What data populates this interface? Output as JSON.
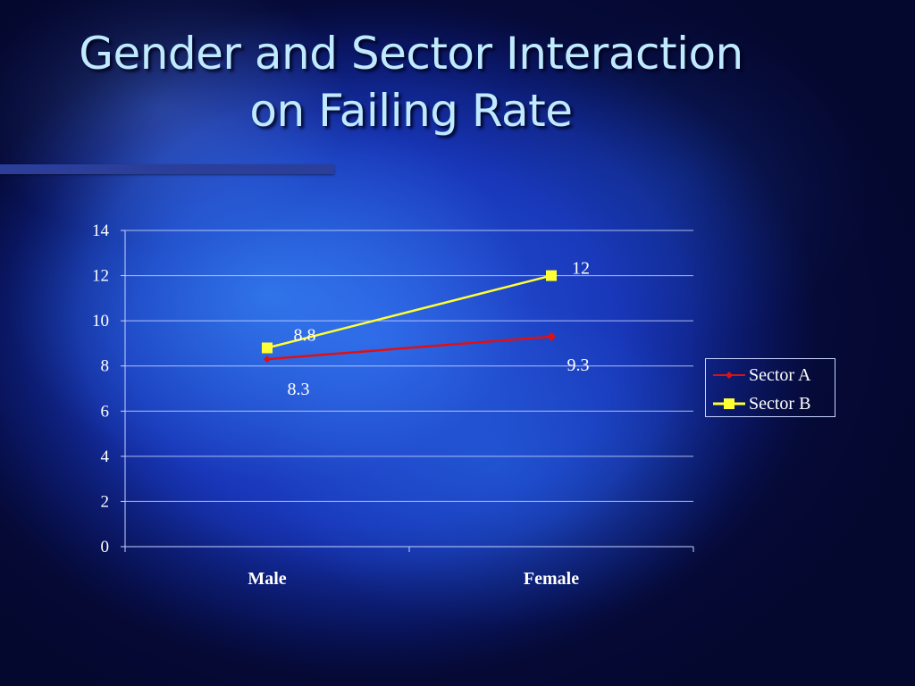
{
  "slide": {
    "title_line1": "Gender and Sector Interaction",
    "title_line2": "on Failing Rate"
  },
  "chart_data": {
    "type": "line",
    "title": "",
    "xlabel": "",
    "ylabel": "",
    "categories": [
      "Male",
      "Female"
    ],
    "ylim": [
      0,
      14
    ],
    "yticks": [
      0,
      2,
      4,
      6,
      8,
      10,
      12,
      14
    ],
    "grid": true,
    "legend_position": "right",
    "series": [
      {
        "name": "Sector A",
        "values": [
          8.3,
          9.3
        ],
        "labels": [
          "8.3",
          "9.3"
        ],
        "color": "#e01010",
        "marker": "diamond"
      },
      {
        "name": "Sector B",
        "values": [
          8.8,
          12
        ],
        "labels": [
          "8.8",
          "12"
        ],
        "color": "#ffff33",
        "marker": "square"
      }
    ]
  }
}
